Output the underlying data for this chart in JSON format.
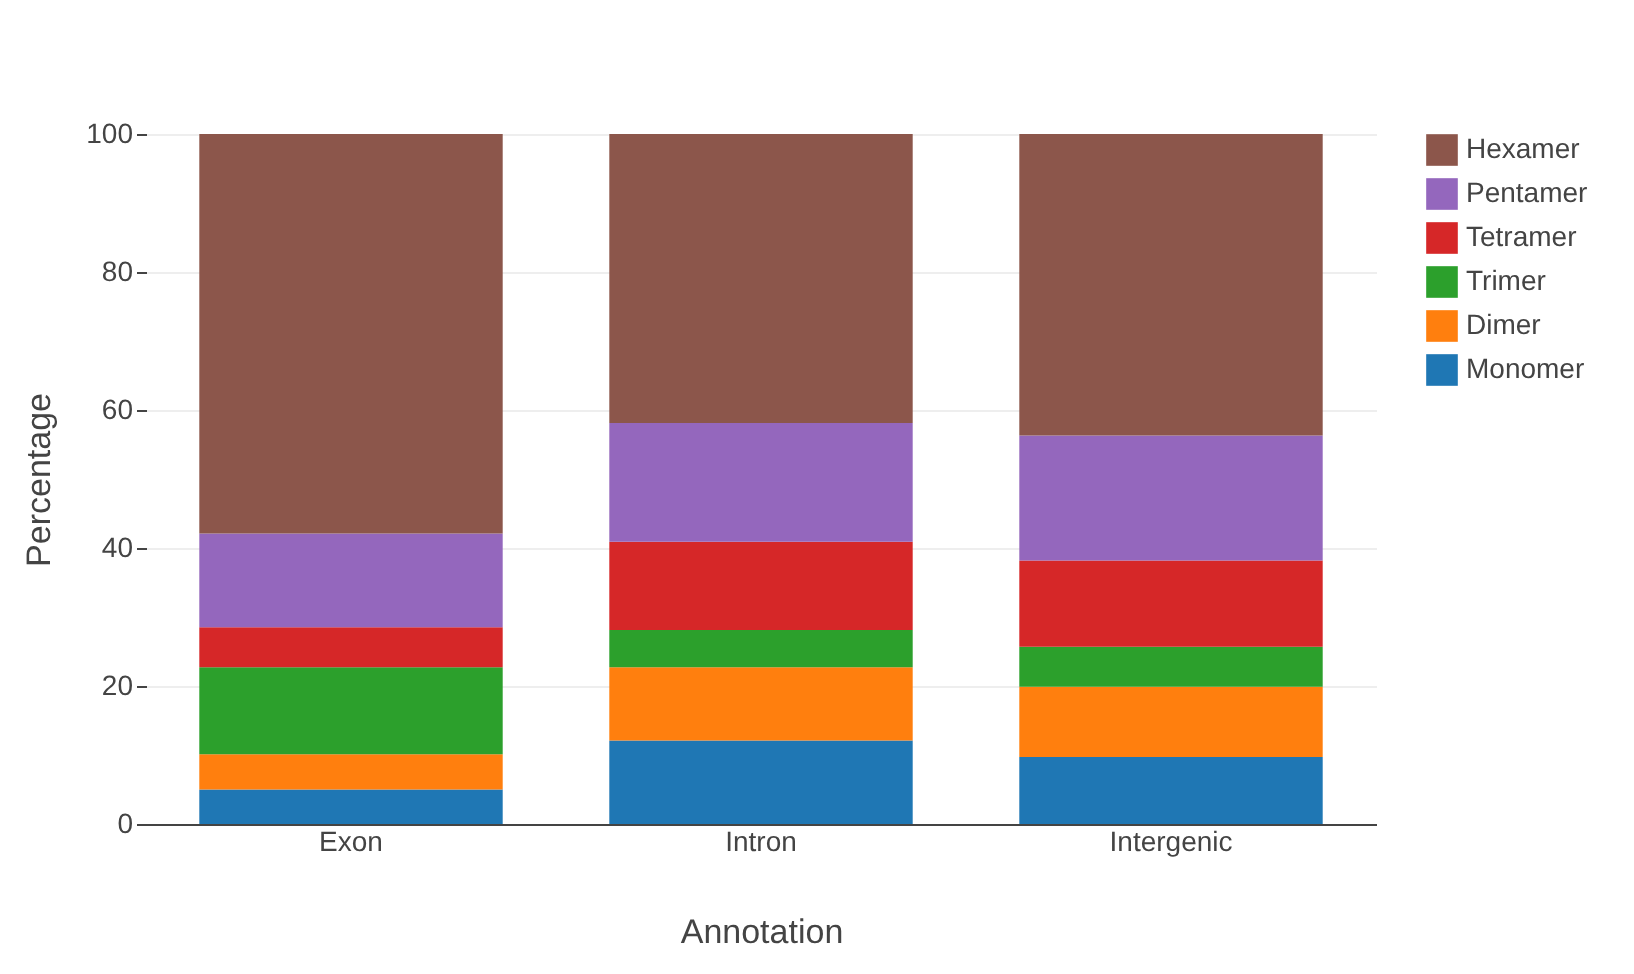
{
  "chart_data": {
    "type": "bar",
    "stacked": true,
    "xlabel": "Annotation",
    "ylabel": "Percentage",
    "categories": [
      "Exon",
      "Intron",
      "Intergenic"
    ],
    "series": [
      {
        "name": "Monomer",
        "color": "#1f77b4",
        "values": [
          5,
          12.1,
          9.7
        ]
      },
      {
        "name": "Dimer",
        "color": "#ff7f0e",
        "values": [
          5.1,
          10.6,
          10.2
        ]
      },
      {
        "name": "Trimer",
        "color": "#2ca02c",
        "values": [
          12.6,
          5.4,
          5.8
        ]
      },
      {
        "name": "Tetramer",
        "color": "#d62728",
        "values": [
          5.8,
          12.8,
          12.5
        ]
      },
      {
        "name": "Pentamer",
        "color": "#9467bd",
        "values": [
          13.6,
          17.2,
          18.1
        ]
      },
      {
        "name": "Hexamer",
        "color": "#8c564b",
        "values": [
          57.9,
          41.9,
          43.7
        ]
      }
    ],
    "ylim": [
      0,
      100
    ],
    "yticks": [
      0,
      20,
      40,
      60,
      80,
      100
    ],
    "grid": "y",
    "legend": "top right"
  }
}
